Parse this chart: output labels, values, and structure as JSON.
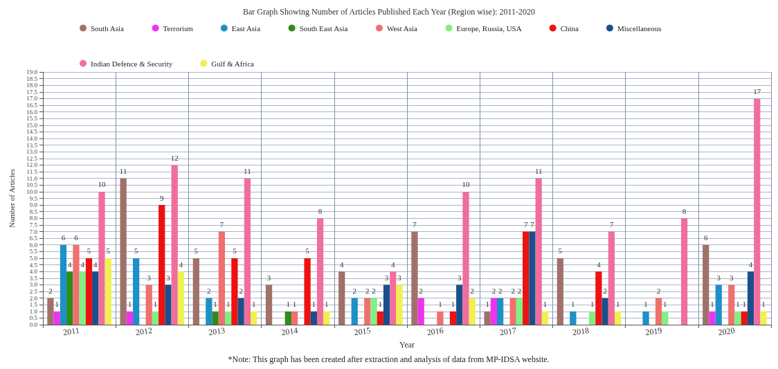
{
  "chart_data": {
    "type": "bar",
    "title": "Bar Graph Showing Number of Articles Published Each Year (Region wise): 2011-2020",
    "xlabel": "Year",
    "ylabel": "Number of Articles",
    "annotations": [
      "*Note: This graph has been created after extraction and analysis of data from MP-IDSA website."
    ],
    "categories": [
      "2011",
      "2012",
      "2013",
      "2014",
      "2015",
      "2016",
      "2017",
      "2018",
      "2019",
      "2020"
    ],
    "series": [
      {
        "name": "South Asia",
        "color": "#a0716a",
        "values": [
          2,
          11,
          5,
          3,
          4,
          7,
          1,
          5,
          null,
          6
        ]
      },
      {
        "name": "Terrorism",
        "color": "#ee33ee",
        "values": [
          1,
          1,
          null,
          null,
          null,
          2,
          2,
          null,
          null,
          1
        ]
      },
      {
        "name": "East Asia",
        "color": "#1e90c8",
        "values": [
          6,
          5,
          2,
          null,
          2,
          null,
          2,
          1,
          1,
          3
        ]
      },
      {
        "name": "South East Asia",
        "color": "#2e8b1e",
        "values": [
          4,
          null,
          1,
          1,
          null,
          null,
          null,
          null,
          null,
          null
        ]
      },
      {
        "name": "West Asia",
        "color": "#f07070",
        "values": [
          6,
          3,
          7,
          1,
          2,
          1,
          2,
          null,
          2,
          3
        ]
      },
      {
        "name": "Europe, Russia, USA",
        "color": "#80f080",
        "values": [
          4,
          1,
          1,
          null,
          2,
          null,
          2,
          1,
          1,
          1
        ]
      },
      {
        "name": "China",
        "color": "#ee1111",
        "values": [
          5,
          9,
          5,
          5,
          1,
          1,
          7,
          4,
          null,
          1
        ]
      },
      {
        "name": "Miscellaneous",
        "color": "#1a4f8a",
        "values": [
          4,
          3,
          2,
          1,
          3,
          3,
          7,
          2,
          null,
          4
        ]
      },
      {
        "name": "Indian Defence & Security",
        "color": "#f06e9e",
        "values": [
          10,
          12,
          11,
          8,
          4,
          10,
          11,
          7,
          8,
          17
        ]
      },
      {
        "name": "Gulf & Africa",
        "color": "#f0f050",
        "values": [
          5,
          4,
          1,
          1,
          3,
          2,
          1,
          1,
          null,
          1
        ]
      }
    ],
    "ylim": [
      0,
      19
    ],
    "yticks": [
      {
        "value": 0,
        "label": "0.0"
      },
      {
        "value": 0.5,
        "label": "0.5"
      },
      {
        "value": 1,
        "label": "1.0"
      },
      {
        "value": 1.5,
        "label": "1.5"
      },
      {
        "value": 2,
        "label": "2.0"
      },
      {
        "value": 2.5,
        "label": "2.5"
      },
      {
        "value": 3,
        "label": "3.0"
      },
      {
        "value": 3.5,
        "label": "3.5"
      },
      {
        "value": 4,
        "label": "4.0"
      },
      {
        "value": 4.5,
        "label": "4.5"
      },
      {
        "value": 5,
        "label": "5.0"
      },
      {
        "value": 5.5,
        "label": "5.5"
      },
      {
        "value": 6,
        "label": "6.0"
      },
      {
        "value": 6.5,
        "label": "6.5"
      },
      {
        "value": 7,
        "label": "7.0"
      },
      {
        "value": 7.5,
        "label": "7.5"
      },
      {
        "value": 8,
        "label": "8.0"
      },
      {
        "value": 8.5,
        "label": "8.5"
      },
      {
        "value": 9,
        "label": "9.0"
      },
      {
        "value": 9.5,
        "label": "9.5"
      },
      {
        "value": 10,
        "label": "10.0"
      },
      {
        "value": 10.5,
        "label": "10.5"
      },
      {
        "value": 11,
        "label": "11.0"
      },
      {
        "value": 11.5,
        "label": "11.5"
      },
      {
        "value": 12,
        "label": "12.0"
      },
      {
        "value": 12.5,
        "label": "12.5"
      },
      {
        "value": 13,
        "label": "13.0"
      },
      {
        "value": 13.5,
        "label": "13.5"
      },
      {
        "value": 14,
        "label": "14.0"
      },
      {
        "value": 14.5,
        "label": "14.5"
      },
      {
        "value": 15,
        "label": "15.0"
      },
      {
        "value": 15.5,
        "label": "15.5"
      },
      {
        "value": 16,
        "label": "16.0"
      },
      {
        "value": 16.5,
        "label": "16.5"
      },
      {
        "value": 17,
        "label": "17.0"
      },
      {
        "value": 17.5,
        "label": "17.5"
      },
      {
        "value": 18,
        "label": "18.0"
      },
      {
        "value": 18.5,
        "label": "18.5"
      },
      {
        "value": 19,
        "label": "19.0"
      }
    ],
    "grid": true,
    "legend": "top",
    "data_labels": true
  }
}
